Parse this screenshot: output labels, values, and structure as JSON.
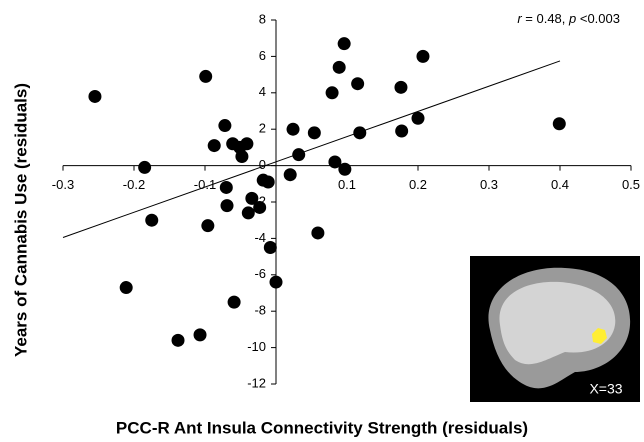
{
  "chart_data": {
    "type": "scatter",
    "annotation": [
      "r",
      " = 0.48, ",
      "p",
      " <0.003"
    ],
    "x_label": "PCC-R Ant Insula Connectivity Strength (residuals)",
    "y_label": "Years of Cannabis Use (residuals)",
    "inset_label": "X=33",
    "color": "#000000",
    "x": [
      -0.255,
      -0.185,
      -0.175,
      -0.211,
      -0.138,
      -0.107,
      -0.099,
      -0.096,
      -0.087,
      -0.072,
      -0.07,
      -0.069,
      -0.061,
      -0.059,
      -0.051,
      -0.048,
      -0.041,
      -0.039,
      -0.034,
      -0.023,
      -0.018,
      -0.011,
      -0.008,
      0.0,
      0.02,
      0.024,
      0.032,
      0.054,
      0.059,
      0.079,
      0.083,
      0.089,
      0.096,
      0.097,
      0.115,
      0.118,
      0.176,
      0.177,
      0.2,
      0.207,
      0.399
    ],
    "y": [
      3.8,
      -0.1,
      -3.0,
      -6.7,
      -9.6,
      -9.3,
      4.9,
      -3.3,
      1.1,
      2.2,
      -1.2,
      -2.2,
      1.2,
      -7.5,
      1.0,
      0.5,
      1.2,
      -2.6,
      -1.8,
      -2.3,
      -0.8,
      -0.9,
      -4.5,
      -6.4,
      -0.5,
      2.0,
      0.6,
      1.8,
      -3.7,
      4.0,
      0.2,
      5.4,
      6.7,
      -0.2,
      4.5,
      1.8,
      4.3,
      1.9,
      2.6,
      6.0,
      2.3
    ],
    "trend_line": {
      "x": [
        -0.3,
        0.4
      ],
      "y": [
        -3.95,
        5.75
      ]
    },
    "xlim": [
      -0.3,
      0.5
    ],
    "ylim": [
      -12,
      8
    ],
    "xticks": [
      -0.3,
      -0.2,
      -0.1,
      0.1,
      0.2,
      0.3,
      0.4,
      0.5
    ],
    "yticks": [
      -12,
      -10,
      -8,
      -6,
      -4,
      -2,
      0,
      2,
      4,
      6,
      8
    ]
  }
}
